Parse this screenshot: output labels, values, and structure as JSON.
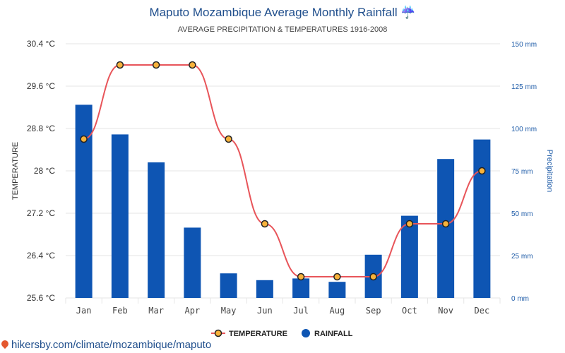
{
  "chart_data": {
    "type": "bar+line",
    "title": "Maputo Mozambique Average Monthly Rainfall",
    "title_icon": "umbrella-rain-icon",
    "subtitle": "AVERAGE PRECIPITATION & TEMPERATURES 1916-2008",
    "categories": [
      "Jan",
      "Feb",
      "Mar",
      "Apr",
      "May",
      "Jun",
      "Jul",
      "Aug",
      "Sep",
      "Oct",
      "Nov",
      "Dec"
    ],
    "y_left": {
      "label": "TEMPERATURE",
      "ticks": [
        "30.4 °C",
        "29.6 °C",
        "28.8 °C",
        "28 °C",
        "27.2 °C",
        "26.4 °C",
        "25.6 °C"
      ],
      "range": [
        25.6,
        30.4
      ]
    },
    "y_right": {
      "label": "Precipitation",
      "ticks": [
        "150 mm",
        "125 mm",
        "100 mm",
        "75 mm",
        "50 mm",
        "25 mm",
        "0 mm"
      ],
      "range": [
        0,
        150
      ]
    },
    "series": [
      {
        "name": "TEMPERATURE",
        "kind": "line",
        "axis": "left",
        "values": [
          28.6,
          30.0,
          30.0,
          30.0,
          28.6,
          27.0,
          26.0,
          26.0,
          26.0,
          27.0,
          27.0,
          28.0
        ],
        "color": "#e8555a",
        "marker_fill": "#f7b23b"
      },
      {
        "name": "RAINFALL",
        "kind": "bar",
        "axis": "right",
        "values": [
          114,
          96.5,
          80,
          41.5,
          14.5,
          10.5,
          11.5,
          9.5,
          25.5,
          48.5,
          82,
          93.5
        ],
        "color": "#0e55b3"
      }
    ],
    "grid": true,
    "legend_position": "bottom-center"
  },
  "footer": {
    "source": "hikersby.com/climate/mozambique/maputo"
  }
}
